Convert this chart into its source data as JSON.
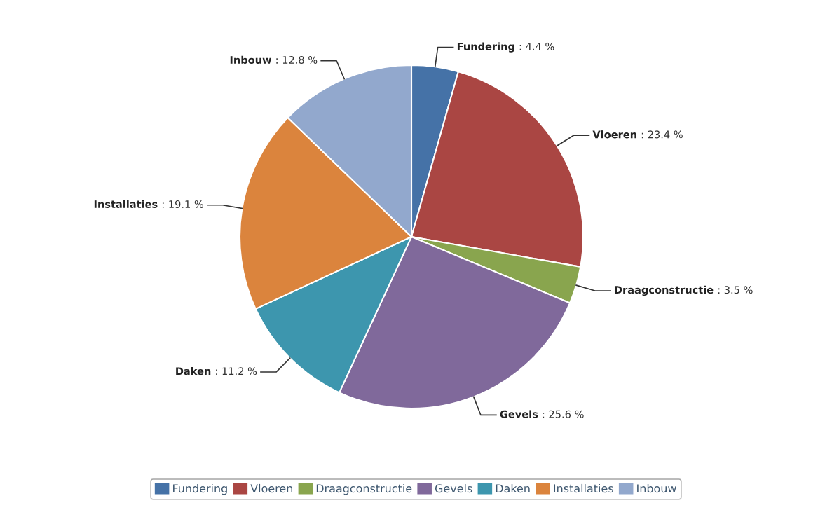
{
  "chart_data": {
    "type": "pie",
    "categories": [
      "Fundering",
      "Vloeren",
      "Draagconstructie",
      "Gevels",
      "Daken",
      "Installaties",
      "Inbouw"
    ],
    "values": [
      4.4,
      23.4,
      3.5,
      25.6,
      11.2,
      19.1,
      12.8
    ],
    "value_labels": [
      ": 4.4 %",
      ": 23.4 %",
      ": 3.5 %",
      ": 25.6 %",
      ": 11.2 %",
      ": 19.1 %",
      ": 12.8 %"
    ],
    "colors": [
      "#4572a7",
      "#aa4643",
      "#89a54e",
      "#80699b",
      "#3d96ae",
      "#db843d",
      "#92a8cd"
    ],
    "legend": "bottom"
  }
}
